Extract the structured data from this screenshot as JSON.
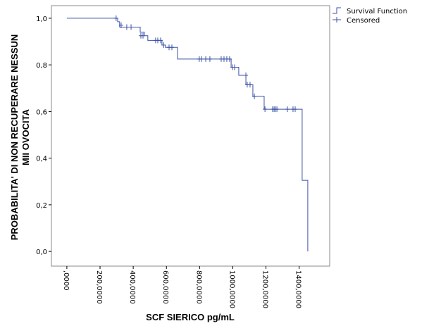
{
  "chart_data": {
    "type": "km",
    "xlabel": "SCF SIERICO pg/mL",
    "ylabel": [
      "PROBABILITA' DI NON RECUPERARE NESSUN",
      "MII OVOCITA"
    ],
    "xlim": [
      -93,
      1584
    ],
    "ylim": [
      -0.063,
      1.054
    ],
    "xticks": [
      {
        "value": 0,
        "label": ",0000"
      },
      {
        "value": 200,
        "label": "200,0000"
      },
      {
        "value": 400,
        "label": "400,0000"
      },
      {
        "value": 600,
        "label": "600,0000"
      },
      {
        "value": 800,
        "label": "800,0000"
      },
      {
        "value": 1000,
        "label": "1000,0000"
      },
      {
        "value": 1200,
        "label": "1200,0000"
      },
      {
        "value": 1400,
        "label": "1400,0000"
      }
    ],
    "yticks": [
      {
        "value": 0,
        "label": "0,0"
      },
      {
        "value": 0.2,
        "label": "0,2"
      },
      {
        "value": 0.4,
        "label": "0,4"
      },
      {
        "value": 0.6,
        "label": "0,6"
      },
      {
        "value": 0.8,
        "label": "0,8"
      },
      {
        "value": 1,
        "label": "1,0"
      }
    ],
    "series": [
      {
        "name": "Survival Function",
        "color": "#3b52a5",
        "x": [
          0,
          306,
          318,
          442,
          467,
          488,
          573,
          594,
          667,
          990,
          1036,
          1079,
          1121,
          1189,
          1418,
          1452
        ],
        "values": [
          1.0,
          0.985,
          0.962,
          0.94,
          0.925,
          0.905,
          0.885,
          0.875,
          0.825,
          0.79,
          0.755,
          0.715,
          0.665,
          0.61,
          0.305,
          0.0
        ]
      },
      {
        "name": "Censored",
        "color": "#3b52a5",
        "x": [
          297,
          327,
          361,
          387,
          446,
          459,
          535,
          548,
          565,
          583,
          616,
          633,
          798,
          811,
          837,
          862,
          930,
          947,
          964,
          981,
          998,
          1011,
          1079,
          1087,
          1104,
          1130,
          1194,
          1240,
          1249,
          1257,
          1266,
          1329,
          1363,
          1376
        ],
        "values": [
          1.0,
          0.97,
          0.962,
          0.962,
          0.925,
          0.925,
          0.905,
          0.905,
          0.905,
          0.885,
          0.875,
          0.875,
          0.825,
          0.825,
          0.825,
          0.825,
          0.825,
          0.825,
          0.825,
          0.825,
          0.79,
          0.79,
          0.755,
          0.715,
          0.715,
          0.665,
          0.61,
          0.61,
          0.61,
          0.61,
          0.61,
          0.61,
          0.61,
          0.61
        ]
      }
    ]
  }
}
